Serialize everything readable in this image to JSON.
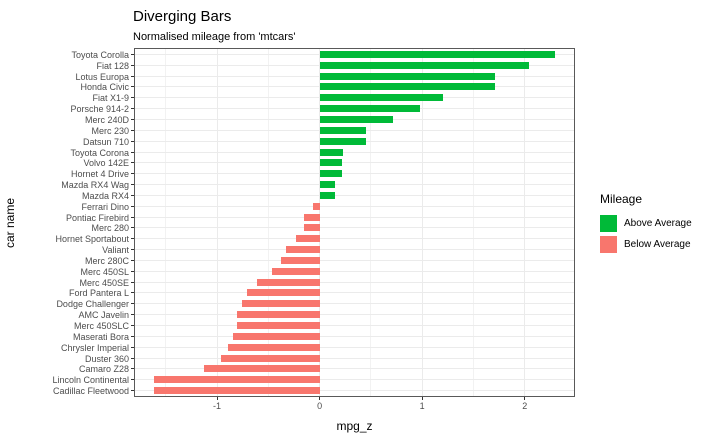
{
  "chart_data": {
    "type": "bar",
    "orientation": "horizontal",
    "title": "Diverging Bars",
    "subtitle": "Normalised mileage from 'mtcars'",
    "xlabel": "mpg_z",
    "ylabel": "car name",
    "xlim": [
      -1.8,
      2.48
    ],
    "x_major_ticks": [
      -1,
      0,
      1,
      2
    ],
    "x_tick_labels": [
      "-1",
      "0",
      "1",
      "2"
    ],
    "x_minor_ticks": [
      -1.5,
      -0.5,
      0.5,
      1.5
    ],
    "grid": true,
    "legend": {
      "title": "Mileage",
      "position": "right",
      "items": [
        {
          "label": "Above Average",
          "color": "#00ba38"
        },
        {
          "label": "Below Average",
          "color": "#f8766d"
        }
      ]
    },
    "colors": {
      "above": "#00ba38",
      "below": "#f8766d"
    },
    "bars": [
      {
        "name": "Toyota Corolla",
        "value": 2.29,
        "group": "above"
      },
      {
        "name": "Fiat 128",
        "value": 2.04,
        "group": "above"
      },
      {
        "name": "Lotus Europa",
        "value": 1.71,
        "group": "above"
      },
      {
        "name": "Honda Civic",
        "value": 1.71,
        "group": "above"
      },
      {
        "name": "Fiat X1-9",
        "value": 1.2,
        "group": "above"
      },
      {
        "name": "Porsche 914-2",
        "value": 0.98,
        "group": "above"
      },
      {
        "name": "Merc 240D",
        "value": 0.72,
        "group": "above"
      },
      {
        "name": "Merc 230",
        "value": 0.45,
        "group": "above"
      },
      {
        "name": "Datsun 710",
        "value": 0.45,
        "group": "above"
      },
      {
        "name": "Toyota Corona",
        "value": 0.23,
        "group": "above"
      },
      {
        "name": "Volvo 142E",
        "value": 0.22,
        "group": "above"
      },
      {
        "name": "Hornet 4 Drive",
        "value": 0.22,
        "group": "above"
      },
      {
        "name": "Mazda RX4 Wag",
        "value": 0.15,
        "group": "above"
      },
      {
        "name": "Mazda RX4",
        "value": 0.15,
        "group": "above"
      },
      {
        "name": "Ferrari Dino",
        "value": -0.06,
        "group": "below"
      },
      {
        "name": "Pontiac Firebird",
        "value": -0.15,
        "group": "below"
      },
      {
        "name": "Merc 280",
        "value": -0.15,
        "group": "below"
      },
      {
        "name": "Hornet Sportabout",
        "value": -0.23,
        "group": "below"
      },
      {
        "name": "Valiant",
        "value": -0.33,
        "group": "below"
      },
      {
        "name": "Merc 280C",
        "value": -0.38,
        "group": "below"
      },
      {
        "name": "Merc 450SL",
        "value": -0.46,
        "group": "below"
      },
      {
        "name": "Merc 450SE",
        "value": -0.61,
        "group": "below"
      },
      {
        "name": "Ford Pantera L",
        "value": -0.71,
        "group": "below"
      },
      {
        "name": "Dodge Challenger",
        "value": -0.76,
        "group": "below"
      },
      {
        "name": "AMC Javelin",
        "value": -0.81,
        "group": "below"
      },
      {
        "name": "Merc 450SLC",
        "value": -0.81,
        "group": "below"
      },
      {
        "name": "Maserati Bora",
        "value": -0.84,
        "group": "below"
      },
      {
        "name": "Chrysler Imperial",
        "value": -0.89,
        "group": "below"
      },
      {
        "name": "Duster 360",
        "value": -0.96,
        "group": "below"
      },
      {
        "name": "Camaro Z28",
        "value": -1.13,
        "group": "below"
      },
      {
        "name": "Lincoln Continental",
        "value": -1.61,
        "group": "below"
      },
      {
        "name": "Cadillac Fleetwood",
        "value": -1.61,
        "group": "below"
      }
    ]
  }
}
